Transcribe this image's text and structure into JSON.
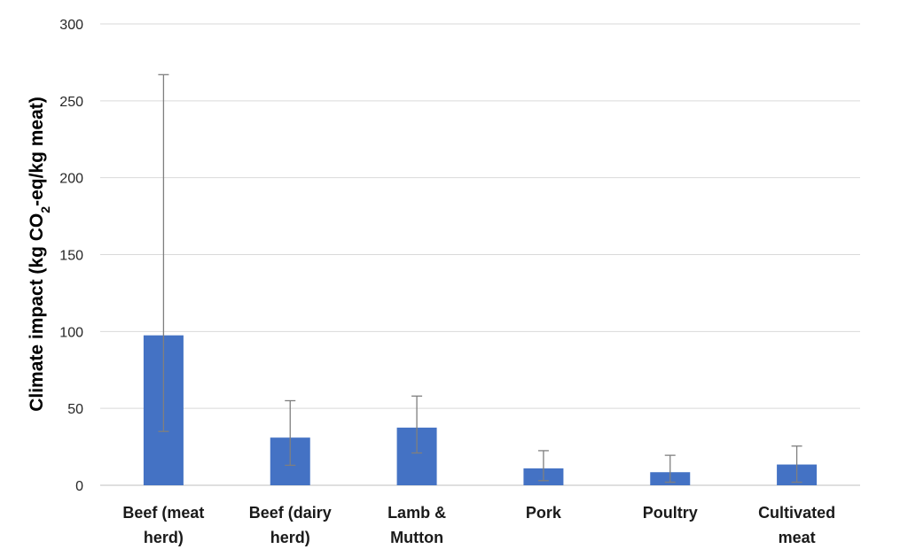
{
  "chart_data": {
    "type": "bar",
    "categories": [
      [
        "Beef (meat",
        "herd)"
      ],
      [
        "Beef (dairy",
        "herd)"
      ],
      [
        "Lamb &",
        "Mutton"
      ],
      [
        "Pork"
      ],
      [
        "Poultry"
      ],
      [
        "Cultivated",
        "meat"
      ]
    ],
    "values": [
      97.5,
      31,
      37.5,
      11,
      8.5,
      13.5
    ],
    "error_low": [
      35,
      13,
      21,
      3,
      2,
      2
    ],
    "error_high": [
      267,
      55,
      58,
      22.5,
      19.5,
      25.5
    ],
    "ylabel": {
      "prefix": "Climate impact (kg CO",
      "subscript": "2",
      "suffix": "-eq/kg meat)"
    },
    "ylim": [
      0,
      300
    ],
    "yticks": [
      0,
      50,
      100,
      150,
      200,
      250,
      300
    ],
    "grid": true,
    "legend": "none",
    "bar_color": "#4472c4",
    "error_color": "#7f7f7f",
    "grid_color": "#d9d9d9"
  }
}
